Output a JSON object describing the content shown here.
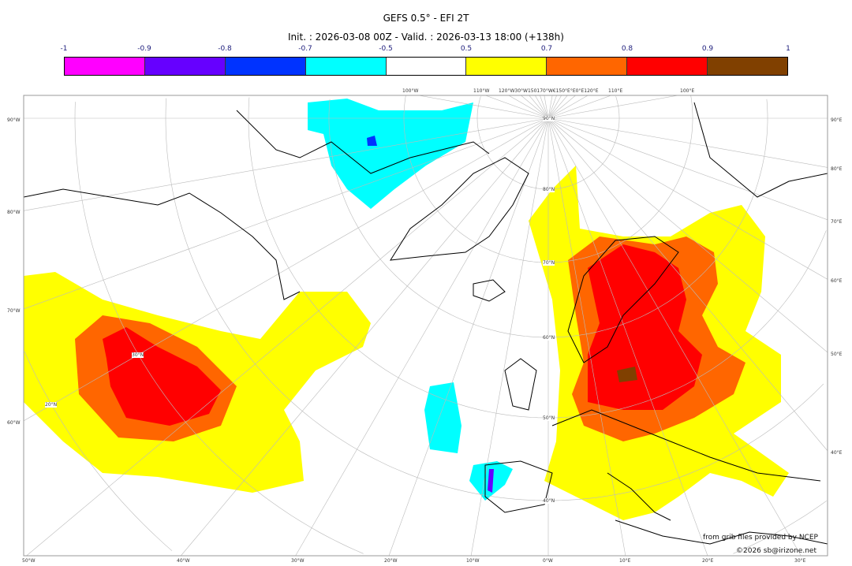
{
  "header": {
    "title": "GEFS 0.5° - EFI 2T",
    "subtitle": "Init. : 2026-03-08 00Z - Valid. : 2026-03-13 18:00 (+138h)"
  },
  "colorbar": {
    "ticks": [
      "-1",
      "-0.9",
      "-0.8",
      "-0.7",
      "-0.5",
      "0.5",
      "0.7",
      "0.8",
      "0.9",
      "1"
    ],
    "colors": [
      "#ff00ff",
      "#6600ff",
      "#0033ff",
      "#00ffff",
      "#ffffff",
      "#ffff00",
      "#ff6600",
      "#ff0000",
      "#804000"
    ]
  },
  "map": {
    "left_labels": [
      "90°W",
      "80°W",
      "70°W",
      "60°W"
    ],
    "right_labels": [
      "90°E",
      "80°E",
      "70°E",
      "60°E",
      "50°E",
      "40°E"
    ],
    "bottom_labels": [
      "50°W",
      "40°W",
      "30°W",
      "20°W",
      "10°W",
      "0°W",
      "10°E",
      "20°E",
      "30°E"
    ],
    "top_labels": [
      "100°W",
      "110°W",
      "120°W30°W150170°W€150°E°E0°E120°E",
      "110°E",
      "100°E"
    ],
    "lat_labels": [
      "90°N",
      "80°N",
      "70°N",
      "60°N",
      "50°N",
      "40°N",
      "30°N",
      "20°N"
    ]
  },
  "credits": {
    "source": "from grib files provided by NCEP",
    "copyright": "©2026 sb@irizone.net"
  }
}
